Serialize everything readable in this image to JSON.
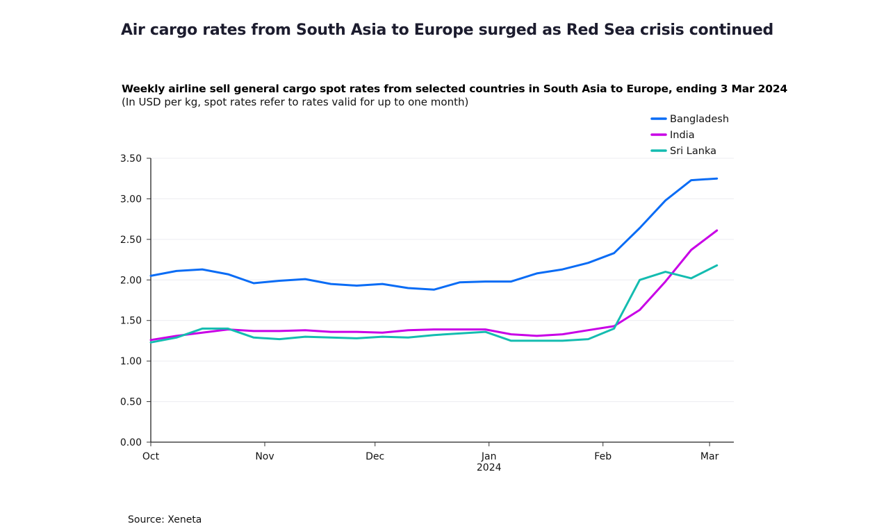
{
  "headline": "Air cargo rates from South Asia to Europe surged as Red Sea crisis continued",
  "source": "Source: Xeneta",
  "chart_data": {
    "type": "line",
    "title": "Weekly airline sell general cargo spot rates from selected countries in South Asia to Europe, ending 3 Mar 2024",
    "subtitle": "(In USD per kg, spot rates refer to rates valid for up to one month)",
    "xlabel": "",
    "ylabel": "",
    "ylim": [
      0,
      3.5
    ],
    "yticks": [
      "0.00",
      "0.50",
      "1.00",
      "1.50",
      "2.00",
      "2.50",
      "3.00",
      "3.50"
    ],
    "xticks": [
      {
        "date": "2023-10-01",
        "label": "Oct",
        "sub": ""
      },
      {
        "date": "2023-11-01",
        "label": "Nov",
        "sub": ""
      },
      {
        "date": "2023-12-01",
        "label": "Dec",
        "sub": ""
      },
      {
        "date": "2024-01-01",
        "label": "Jan",
        "sub": "2024"
      },
      {
        "date": "2024-02-01",
        "label": "Feb",
        "sub": ""
      },
      {
        "date": "2024-03-01",
        "label": "Mar",
        "sub": ""
      }
    ],
    "xlim": [
      "2023-10-01",
      "2024-03-07"
    ],
    "grid": true,
    "legend_position": "top-right",
    "x": [
      "2023-10-01",
      "2023-10-08",
      "2023-10-15",
      "2023-10-22",
      "2023-10-29",
      "2023-11-05",
      "2023-11-12",
      "2023-11-19",
      "2023-11-26",
      "2023-12-03",
      "2023-12-10",
      "2023-12-17",
      "2023-12-24",
      "2023-12-31",
      "2024-01-07",
      "2024-01-14",
      "2024-01-21",
      "2024-01-28",
      "2024-02-04",
      "2024-02-11",
      "2024-02-18",
      "2024-02-25",
      "2024-03-03"
    ],
    "series": [
      {
        "name": "Bangladesh",
        "color": "#0a6cf5",
        "values": [
          2.05,
          2.11,
          2.13,
          2.07,
          1.96,
          1.99,
          2.01,
          1.95,
          1.93,
          1.95,
          1.9,
          1.88,
          1.97,
          1.98,
          1.98,
          2.08,
          2.13,
          2.21,
          2.33,
          2.64,
          2.98,
          3.23,
          3.25
        ]
      },
      {
        "name": "India",
        "color": "#c800e6",
        "values": [
          1.26,
          1.31,
          1.35,
          1.39,
          1.37,
          1.37,
          1.38,
          1.36,
          1.36,
          1.35,
          1.38,
          1.39,
          1.39,
          1.39,
          1.33,
          1.31,
          1.33,
          1.38,
          1.43,
          1.63,
          1.98,
          2.37,
          2.61
        ]
      },
      {
        "name": "Sri Lanka",
        "color": "#14bcb0",
        "values": [
          1.23,
          1.29,
          1.4,
          1.4,
          1.29,
          1.27,
          1.3,
          1.29,
          1.28,
          1.3,
          1.29,
          1.32,
          1.34,
          1.36,
          1.25,
          1.25,
          1.25,
          1.27,
          1.4,
          2.0,
          2.1,
          2.02,
          2.18
        ]
      }
    ]
  }
}
